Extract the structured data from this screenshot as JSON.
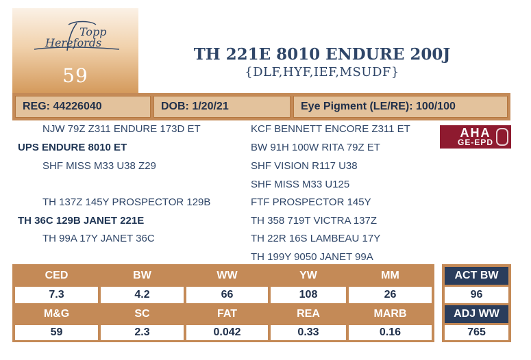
{
  "logo": {
    "line1": "Topp",
    "line2": "Herefords"
  },
  "lot_number": "59",
  "animal": {
    "name": "TH 221E 8010 ENDURE 200J",
    "codes": "{DLF,HYF,IEF,MSUDF}"
  },
  "info": {
    "reg": "REG: 44226040",
    "dob": "DOB: 1/20/21",
    "eye": "Eye Pigment (LE/RE): 100/100"
  },
  "pedigree": {
    "sire_sire": "NJW 79Z Z311 ENDURE 173D ET",
    "sire": "UPS ENDURE 8010 ET",
    "sire_dam": "SHF MISS M33 U38 Z29",
    "dam_sire": "TH 137Z 145Y PROSPECTOR 129B",
    "dam": "TH 36C 129B JANET 221E",
    "dam_dam": "TH 99A 17Y JANET 36C",
    "ssss": "KCF BENNETT ENCORE Z311 ET",
    "sssd": "BW 91H 100W RITA 79Z ET",
    "ssds": "SHF VISION R117 U38",
    "ssdd": "SHF MISS M33 U125",
    "dsss": "FTF PROSPECTOR 145Y",
    "dssd": "TH 358 719T VICTRA 137Z",
    "dsds": "TH 22R 16S LAMBEAU 17Y",
    "dsdd": "TH 199Y 9050 JANET 99A"
  },
  "badge": {
    "top": "AHA",
    "bottom": "GE-EPD"
  },
  "epds": {
    "row1_headers": [
      "CED",
      "BW",
      "WW",
      "YW",
      "MM"
    ],
    "row1_values": [
      "7.3",
      "4.2",
      "66",
      "108",
      "26"
    ],
    "row2_headers": [
      "M&G",
      "SC",
      "FAT",
      "REA",
      "MARB"
    ],
    "row2_values": [
      "59",
      "2.3",
      "0.042",
      "0.33",
      "0.16"
    ]
  },
  "actual": {
    "bw_label": "ACT BW",
    "bw_value": "96",
    "ww_label": "ADJ WW",
    "ww_value": "765"
  },
  "colors": {
    "accent": "#c48a57",
    "navy": "#2a3d5c",
    "text": "#2f4668",
    "badge": "#8e1a2f"
  }
}
